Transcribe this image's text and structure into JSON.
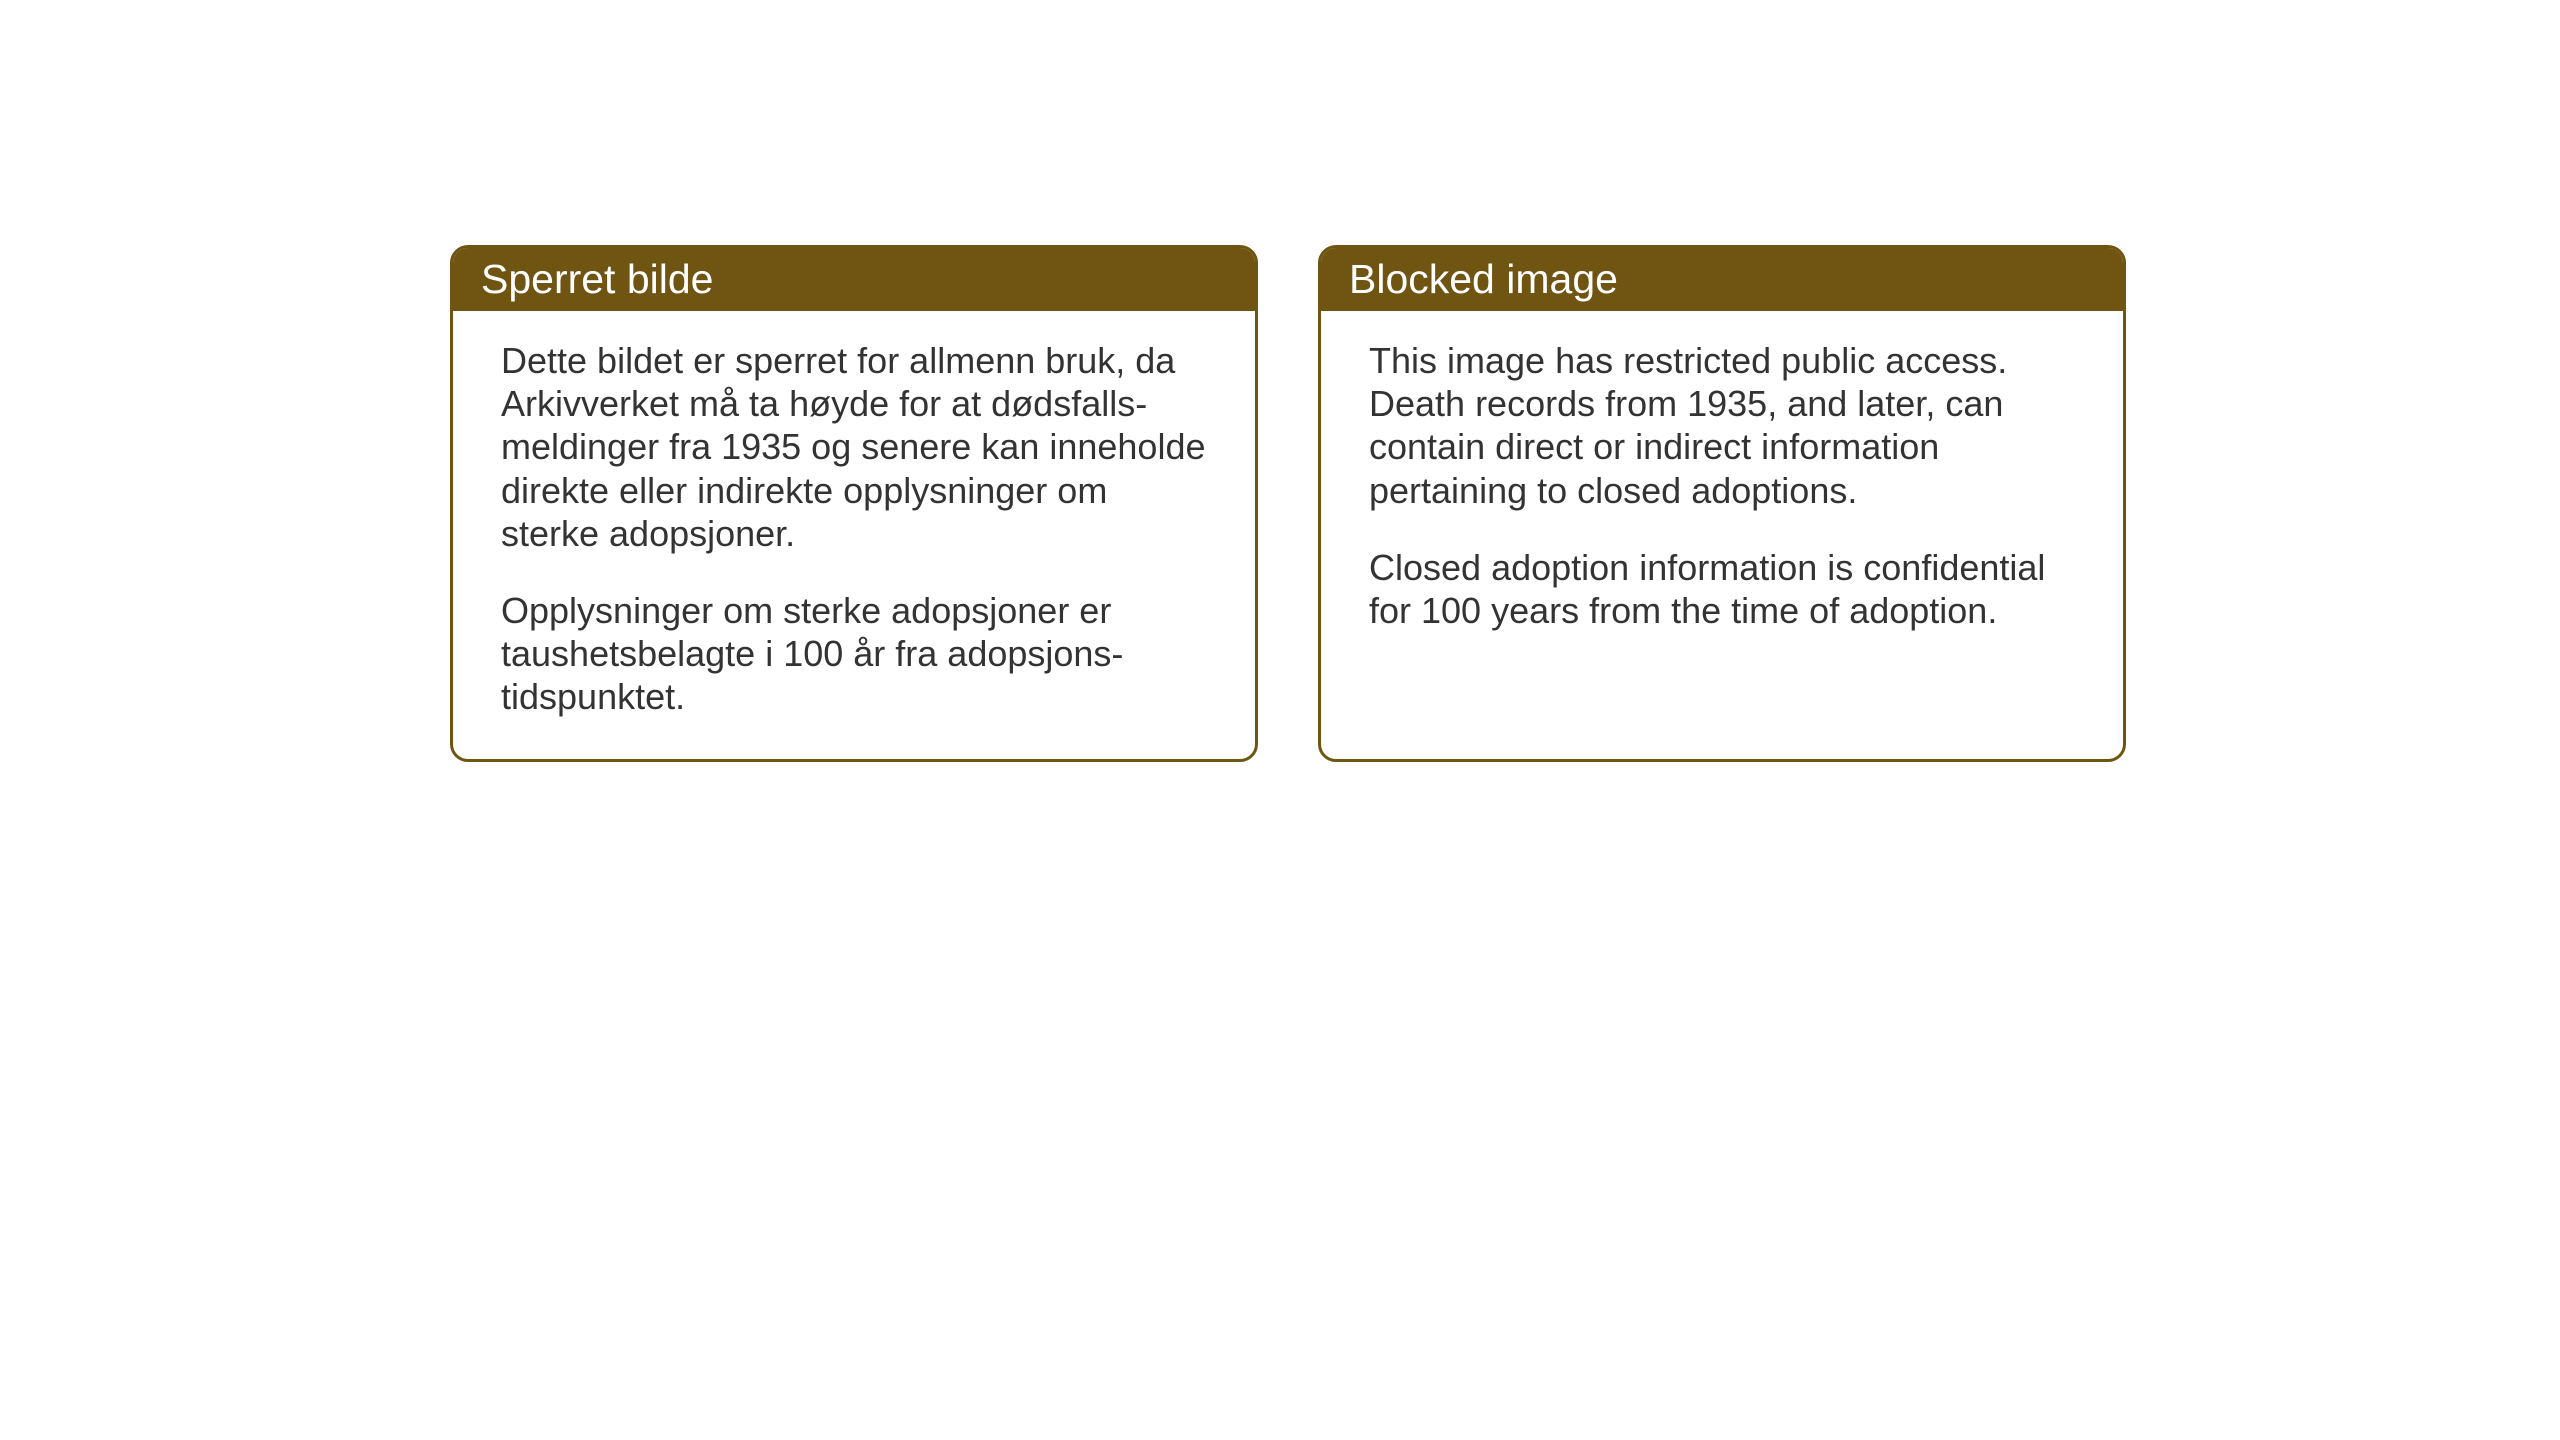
{
  "cards": {
    "norwegian": {
      "title": "Sperret bilde",
      "paragraph1": "Dette bildet er sperret for allmenn bruk, da Arkivverket må ta høyde for at dødsfalls-meldinger fra 1935 og senere kan inneholde direkte eller indirekte opplysninger om sterke adopsjoner.",
      "paragraph2": "Opplysninger om sterke adopsjoner er taushetsbelagte i 100 år fra adopsjons-tidspunktet."
    },
    "english": {
      "title": "Blocked image",
      "paragraph1": "This image has restricted public access. Death records from 1935, and later, can contain direct or indirect information pertaining to closed adoptions.",
      "paragraph2": "Closed adoption information is confidential for 100 years from the time of adoption."
    }
  },
  "styling": {
    "header_bg_color": "#6f5412",
    "header_text_color": "#ffffff",
    "border_color": "#6f5412",
    "body_text_color": "#333333",
    "card_bg_color": "#ffffff",
    "page_bg_color": "#ffffff",
    "border_radius": 18,
    "border_width": 3,
    "title_fontsize": 41,
    "body_fontsize": 36
  }
}
